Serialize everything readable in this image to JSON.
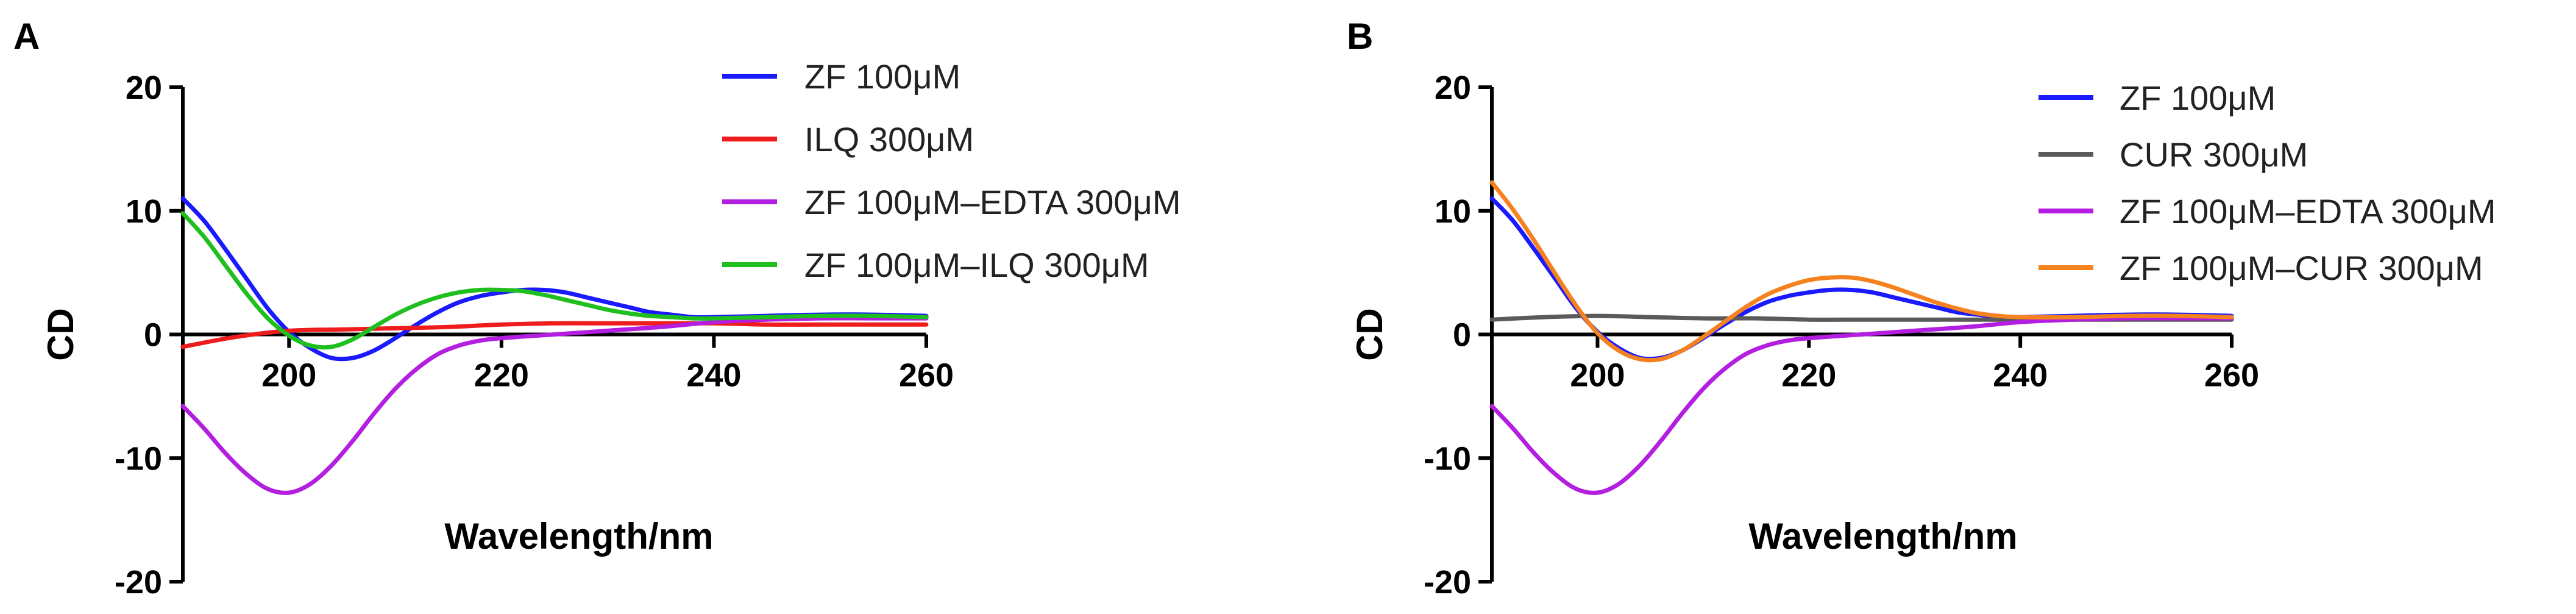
{
  "chart_data": [
    {
      "panel": "A",
      "type": "line",
      "xlabel": "Wavelength/nm",
      "ylabel": "CD",
      "xlim": [
        190,
        260
      ],
      "ylim": [
        -20,
        20
      ],
      "xticks": [
        200,
        220,
        240,
        260
      ],
      "yticks": [
        -20,
        -10,
        0,
        10,
        20
      ],
      "legend": "top-right",
      "grid": false,
      "series": [
        {
          "name": "ZF 100μM",
          "color": "#1a1aff",
          "x": [
            190,
            192,
            194,
            196,
            198,
            200,
            202,
            204,
            206,
            208,
            210,
            212,
            214,
            216,
            218,
            220,
            222,
            224,
            226,
            228,
            230,
            232,
            234,
            236,
            238,
            240,
            245,
            250,
            255,
            260
          ],
          "y": [
            11,
            9.2,
            6.9,
            4.5,
            2.1,
            0.2,
            -1.1,
            -1.9,
            -1.9,
            -1.3,
            -0.3,
            0.8,
            1.8,
            2.6,
            3.1,
            3.4,
            3.6,
            3.6,
            3.4,
            3.0,
            2.6,
            2.2,
            1.8,
            1.6,
            1.4,
            1.4,
            1.5,
            1.6,
            1.6,
            1.5
          ]
        },
        {
          "name": "ILQ 300μM",
          "color": "#ee1c1c",
          "x": [
            190,
            195,
            200,
            205,
            210,
            215,
            220,
            225,
            230,
            235,
            240,
            245,
            250,
            255,
            260
          ],
          "y": [
            -1.0,
            -0.2,
            0.3,
            0.4,
            0.5,
            0.6,
            0.8,
            0.9,
            0.9,
            0.9,
            0.9,
            0.8,
            0.8,
            0.8,
            0.8
          ]
        },
        {
          "name": "ZF 100μM–EDTA 300μM",
          "color": "#b31ee0",
          "x": [
            190,
            192,
            194,
            196,
            198,
            200,
            202,
            204,
            206,
            208,
            210,
            212,
            214,
            216,
            218,
            220,
            225,
            230,
            235,
            240,
            245,
            250,
            255,
            260
          ],
          "y": [
            -5.8,
            -7.6,
            -9.6,
            -11.3,
            -12.5,
            -12.8,
            -12.1,
            -10.6,
            -8.6,
            -6.4,
            -4.4,
            -2.8,
            -1.6,
            -0.9,
            -0.5,
            -0.3,
            0.0,
            0.3,
            0.6,
            1.0,
            1.2,
            1.3,
            1.3,
            1.3
          ]
        },
        {
          "name": "ZF 100μM–ILQ 300μM",
          "color": "#1fbf1f",
          "x": [
            190,
            192,
            194,
            196,
            198,
            200,
            202,
            204,
            206,
            208,
            210,
            212,
            214,
            216,
            218,
            220,
            222,
            224,
            226,
            228,
            230,
            232,
            234,
            236,
            238,
            240,
            245,
            250,
            255,
            260
          ],
          "y": [
            9.8,
            7.9,
            5.6,
            3.3,
            1.3,
            -0.1,
            -0.9,
            -1.0,
            -0.4,
            0.6,
            1.6,
            2.4,
            3.0,
            3.4,
            3.6,
            3.6,
            3.5,
            3.2,
            2.8,
            2.4,
            2.0,
            1.7,
            1.5,
            1.4,
            1.3,
            1.3,
            1.4,
            1.5,
            1.5,
            1.4
          ]
        }
      ]
    },
    {
      "panel": "B",
      "type": "line",
      "xlabel": "Wavelength/nm",
      "ylabel": "CD",
      "xlim": [
        190,
        260
      ],
      "ylim": [
        -20,
        20
      ],
      "xticks": [
        200,
        220,
        240,
        260
      ],
      "yticks": [
        -20,
        -10,
        0,
        10,
        20
      ],
      "legend": "top-right",
      "grid": false,
      "series": [
        {
          "name": "ZF 100μM",
          "color": "#1a1aff",
          "x": [
            190,
            192,
            194,
            196,
            198,
            200,
            202,
            204,
            206,
            208,
            210,
            212,
            214,
            216,
            218,
            220,
            222,
            224,
            226,
            228,
            230,
            232,
            234,
            236,
            238,
            240,
            245,
            250,
            255,
            260
          ],
          "y": [
            11,
            9.2,
            6.9,
            4.5,
            2.1,
            0.2,
            -1.1,
            -1.9,
            -1.9,
            -1.3,
            -0.3,
            0.8,
            1.8,
            2.6,
            3.1,
            3.4,
            3.6,
            3.6,
            3.4,
            3.0,
            2.6,
            2.2,
            1.8,
            1.6,
            1.4,
            1.4,
            1.5,
            1.6,
            1.6,
            1.5
          ]
        },
        {
          "name": "CUR 300μM",
          "color": "#5a5a5a",
          "x": [
            190,
            195,
            200,
            205,
            210,
            215,
            220,
            225,
            230,
            235,
            240,
            245,
            250,
            255,
            260
          ],
          "y": [
            1.2,
            1.4,
            1.5,
            1.4,
            1.3,
            1.3,
            1.2,
            1.2,
            1.2,
            1.2,
            1.2,
            1.2,
            1.2,
            1.2,
            1.2
          ]
        },
        {
          "name": "ZF 100μM–EDTA 300μM",
          "color": "#b31ee0",
          "x": [
            190,
            192,
            194,
            196,
            198,
            200,
            202,
            204,
            206,
            208,
            210,
            212,
            214,
            216,
            218,
            220,
            225,
            230,
            235,
            240,
            245,
            250,
            255,
            260
          ],
          "y": [
            -5.8,
            -7.6,
            -9.6,
            -11.3,
            -12.5,
            -12.8,
            -12.1,
            -10.6,
            -8.6,
            -6.4,
            -4.4,
            -2.8,
            -1.6,
            -0.9,
            -0.5,
            -0.3,
            0.0,
            0.3,
            0.6,
            1.0,
            1.2,
            1.3,
            1.3,
            1.3
          ]
        },
        {
          "name": "ZF 100μM–CUR 300μM",
          "color": "#f5821f",
          "x": [
            190,
            192,
            194,
            196,
            198,
            200,
            202,
            204,
            206,
            208,
            210,
            212,
            214,
            216,
            218,
            220,
            222,
            224,
            226,
            228,
            230,
            232,
            234,
            236,
            238,
            240,
            245,
            250,
            255,
            260
          ],
          "y": [
            12.3,
            10.1,
            7.6,
            4.9,
            2.3,
            0.1,
            -1.3,
            -2.0,
            -2.0,
            -1.3,
            -0.2,
            1.0,
            2.2,
            3.2,
            3.9,
            4.4,
            4.6,
            4.6,
            4.3,
            3.8,
            3.2,
            2.6,
            2.1,
            1.7,
            1.5,
            1.4,
            1.4,
            1.5,
            1.5,
            1.4
          ]
        }
      ]
    }
  ]
}
